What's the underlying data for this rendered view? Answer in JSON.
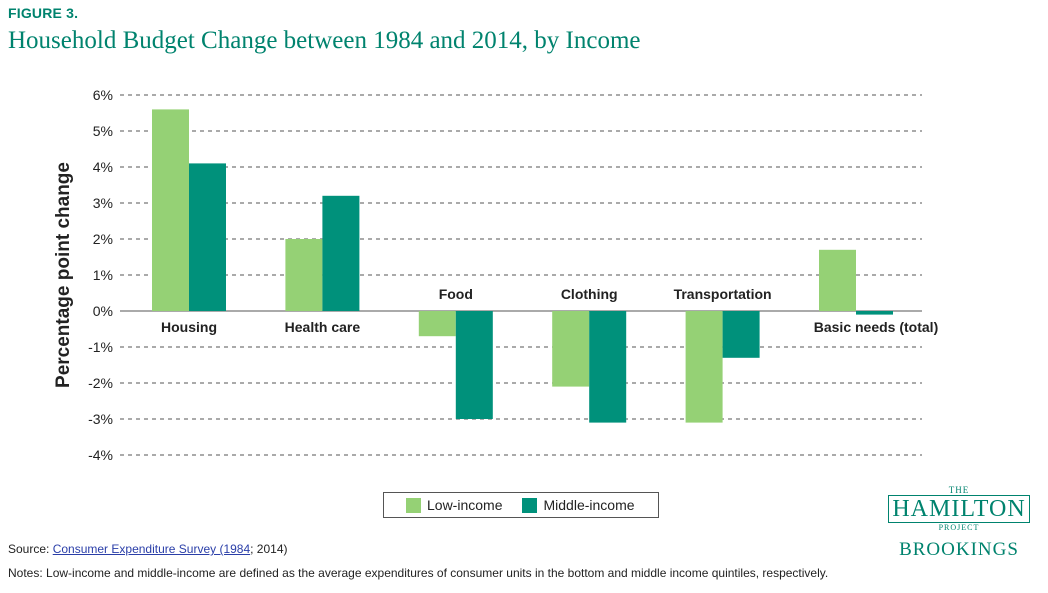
{
  "header": {
    "figure_label": "FIGURE 3.",
    "title": "Household Budget Change between 1984 and 2014, by Income"
  },
  "chart_data": {
    "type": "bar",
    "title": "Household Budget Change between 1984 and 2014, by Income",
    "ylabel": "Percentage point change",
    "xlabel": "",
    "ylim": [
      -4,
      6
    ],
    "yticks": [
      6,
      5,
      4,
      3,
      2,
      1,
      0,
      -1,
      -2,
      -3,
      -4
    ],
    "ytick_labels": [
      "6%",
      "5%",
      "4%",
      "3%",
      "2%",
      "1%",
      "0%",
      "-1%",
      "-2%",
      "-3%",
      "-4%"
    ],
    "grid": "horizontal dashed",
    "categories": [
      "Housing",
      "Health care",
      "Food",
      "Clothing",
      "Transportation",
      "Basic needs (total)"
    ],
    "series": [
      {
        "name": "Low-income",
        "color": "#95d175",
        "values": [
          5.6,
          2.0,
          -0.7,
          -2.1,
          -3.1,
          1.7
        ]
      },
      {
        "name": "Middle-income",
        "color": "#00917b",
        "values": [
          4.1,
          3.2,
          -3.0,
          -3.1,
          -1.3,
          -0.1
        ]
      }
    ],
    "legend_position": "bottom-center"
  },
  "footer": {
    "source_prefix": "Source: ",
    "source_link": "Consumer Expenditure Survey (1984",
    "source_suffix": "; 2014)",
    "notes": "Notes: Low-income and middle-income are defined as the average expenditures of consumer units in the bottom and middle income quintiles, respectively."
  },
  "logo": {
    "the": "THE",
    "name": "HAMILTON",
    "project": "PROJECT",
    "brookings": "BROOKINGS"
  }
}
